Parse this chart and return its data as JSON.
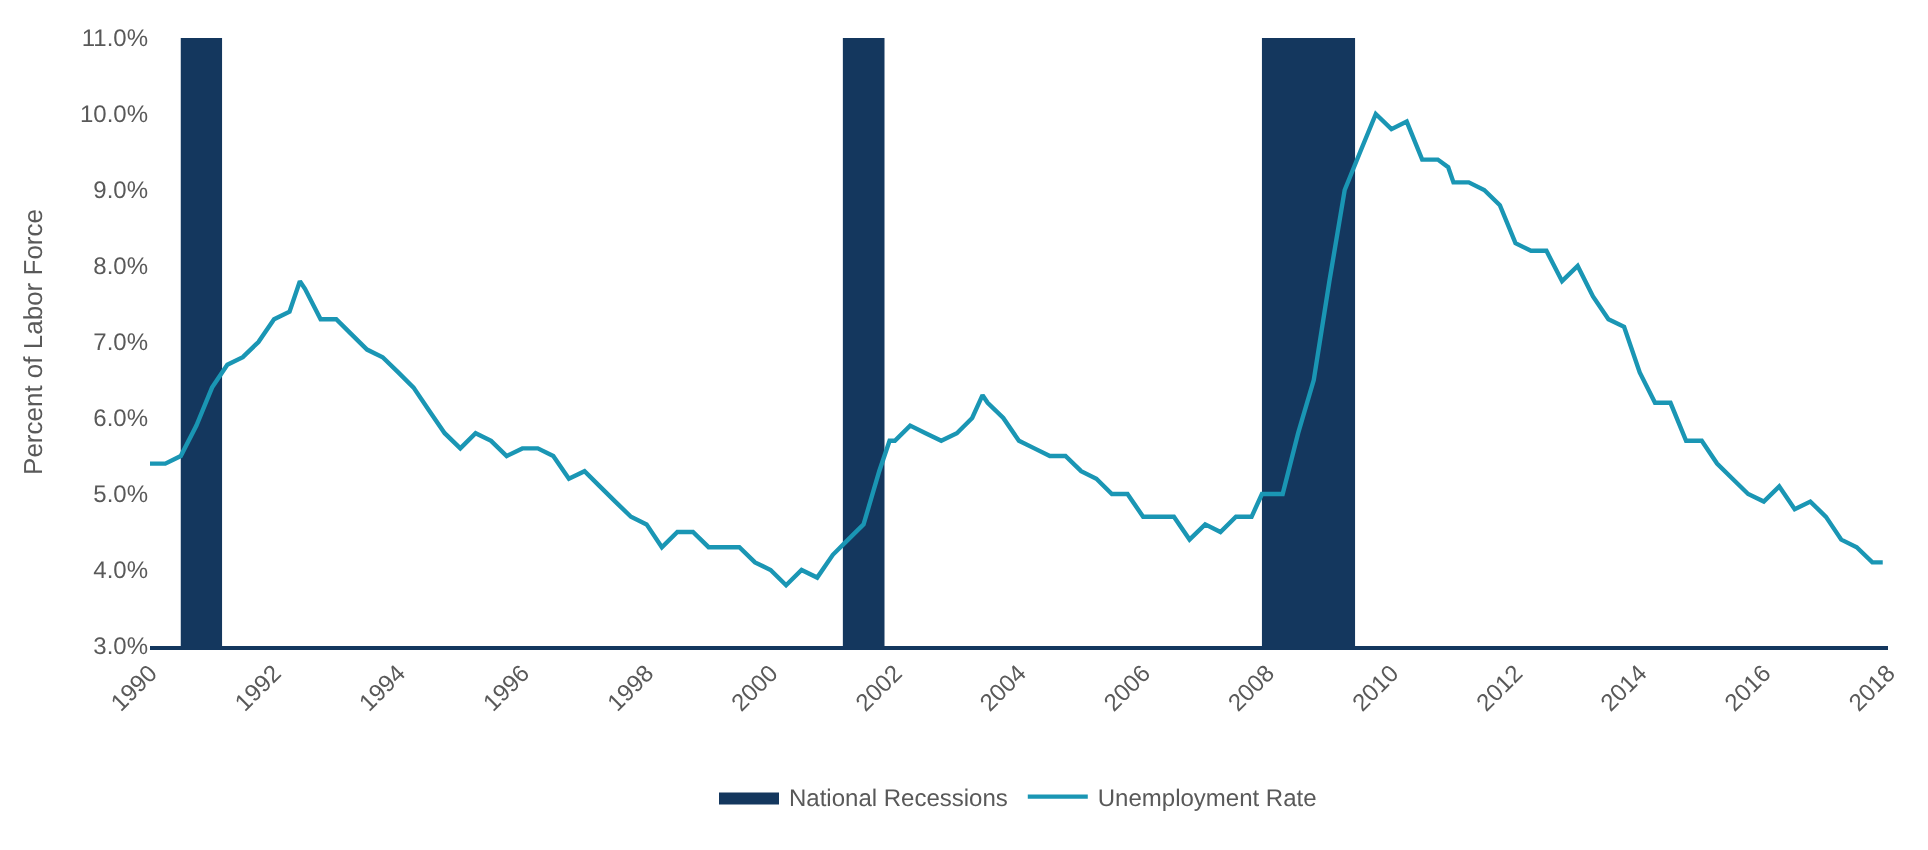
{
  "chart_data": {
    "type": "line",
    "ylabel": "Percent of Labor Force",
    "x": [
      "1990-01",
      "1990-04",
      "1990-07",
      "1990-10",
      "1991-01",
      "1991-04",
      "1991-07",
      "1991-10",
      "1992-01",
      "1992-04",
      "1992-06",
      "1992-07",
      "1992-10",
      "1993-01",
      "1993-04",
      "1993-07",
      "1993-10",
      "1994-01",
      "1994-04",
      "1994-07",
      "1994-10",
      "1995-01",
      "1995-04",
      "1995-07",
      "1995-10",
      "1996-01",
      "1996-04",
      "1996-07",
      "1996-10",
      "1997-01",
      "1997-04",
      "1997-07",
      "1997-10",
      "1998-01",
      "1998-04",
      "1998-07",
      "1998-10",
      "1999-01",
      "1999-04",
      "1999-07",
      "1999-10",
      "2000-01",
      "2000-04",
      "2000-07",
      "2000-10",
      "2001-01",
      "2001-04",
      "2001-07",
      "2001-10",
      "2001-12",
      "2002-01",
      "2002-04",
      "2002-07",
      "2002-10",
      "2003-01",
      "2003-04",
      "2003-06",
      "2003-07",
      "2003-10",
      "2004-01",
      "2004-04",
      "2004-07",
      "2004-10",
      "2005-01",
      "2005-04",
      "2005-07",
      "2005-10",
      "2006-01",
      "2006-04",
      "2006-07",
      "2006-10",
      "2007-01",
      "2007-04",
      "2007-07",
      "2007-10",
      "2007-12",
      "2008-01",
      "2008-04",
      "2008-07",
      "2008-10",
      "2009-01",
      "2009-04",
      "2009-07",
      "2009-10",
      "2010-01",
      "2010-04",
      "2010-07",
      "2010-10",
      "2010-12",
      "2011-01",
      "2011-04",
      "2011-07",
      "2011-10",
      "2012-01",
      "2012-04",
      "2012-07",
      "2012-10",
      "2013-01",
      "2013-04",
      "2013-07",
      "2013-10",
      "2014-01",
      "2014-04",
      "2014-07",
      "2014-10",
      "2015-01",
      "2015-04",
      "2015-07",
      "2015-10",
      "2016-01",
      "2016-04",
      "2016-07",
      "2016-10",
      "2017-01",
      "2017-04",
      "2017-07",
      "2017-10",
      "2017-12"
    ],
    "series": [
      {
        "name": "Unemployment Rate",
        "color": "#1a96b4",
        "values": [
          5.4,
          5.4,
          5.5,
          5.9,
          6.4,
          6.7,
          6.8,
          7.0,
          7.3,
          7.4,
          7.8,
          7.7,
          7.3,
          7.3,
          7.1,
          6.9,
          6.8,
          6.6,
          6.4,
          6.1,
          5.8,
          5.6,
          5.8,
          5.7,
          5.5,
          5.6,
          5.6,
          5.5,
          5.2,
          5.3,
          5.1,
          4.9,
          4.7,
          4.6,
          4.3,
          4.5,
          4.5,
          4.3,
          4.3,
          4.3,
          4.1,
          4.0,
          3.8,
          4.0,
          3.9,
          4.2,
          4.4,
          4.6,
          5.3,
          5.7,
          5.7,
          5.9,
          5.8,
          5.7,
          5.8,
          6.0,
          6.3,
          6.2,
          6.0,
          5.7,
          5.6,
          5.5,
          5.5,
          5.3,
          5.2,
          5.0,
          5.0,
          4.7,
          4.7,
          4.7,
          4.4,
          4.6,
          4.5,
          4.7,
          4.7,
          5.0,
          5.0,
          5.0,
          5.8,
          6.5,
          7.8,
          9.0,
          9.5,
          10.0,
          9.8,
          9.9,
          9.4,
          9.4,
          9.3,
          9.1,
          9.1,
          9.0,
          8.8,
          8.3,
          8.2,
          8.2,
          7.8,
          8.0,
          7.6,
          7.3,
          7.2,
          6.6,
          6.2,
          6.2,
          5.7,
          5.7,
          5.4,
          5.2,
          5.0,
          4.9,
          5.1,
          4.8,
          4.9,
          4.7,
          4.4,
          4.3,
          4.1,
          4.1
        ]
      }
    ],
    "bands": [
      {
        "axis": "x",
        "from": "1990-07",
        "to": "1991-03",
        "label": "National Recessions",
        "color": "#14375e"
      },
      {
        "axis": "x",
        "from": "2001-03",
        "to": "2001-11",
        "color": "#14375e"
      },
      {
        "axis": "x",
        "from": "2007-12",
        "to": "2009-06",
        "color": "#14375e"
      }
    ],
    "xlim": [
      "1990-01",
      "2018-01"
    ],
    "xticks": [
      {
        "value": "1990-01",
        "label": "1990"
      },
      {
        "value": "1992-01",
        "label": "1992"
      },
      {
        "value": "1994-01",
        "label": "1994"
      },
      {
        "value": "1996-01",
        "label": "1996"
      },
      {
        "value": "1998-01",
        "label": "1998"
      },
      {
        "value": "2000-01",
        "label": "2000"
      },
      {
        "value": "2002-01",
        "label": "2002"
      },
      {
        "value": "2004-01",
        "label": "2004"
      },
      {
        "value": "2006-01",
        "label": "2006"
      },
      {
        "value": "2008-01",
        "label": "2008"
      },
      {
        "value": "2010-01",
        "label": "2010"
      },
      {
        "value": "2012-01",
        "label": "2012"
      },
      {
        "value": "2014-01",
        "label": "2014"
      },
      {
        "value": "2016-01",
        "label": "2016"
      },
      {
        "value": "2018-01",
        "label": "2018"
      }
    ],
    "ylim": [
      3,
      11
    ],
    "yticks": [
      {
        "value": 3,
        "label": "3.0%"
      },
      {
        "value": 4,
        "label": "4.0%"
      },
      {
        "value": 5,
        "label": "5.0%"
      },
      {
        "value": 6,
        "label": "6.0%"
      },
      {
        "value": 7,
        "label": "7.0%"
      },
      {
        "value": 8,
        "label": "8.0%"
      },
      {
        "value": 9,
        "label": "9.0%"
      },
      {
        "value": 10,
        "label": "10.0%"
      },
      {
        "value": 11,
        "label": "11.0%"
      }
    ],
    "legend": "bottom",
    "marker": "none",
    "line_style": "solid"
  }
}
